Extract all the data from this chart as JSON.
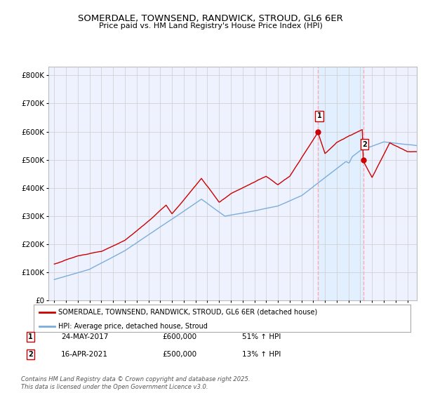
{
  "title": "SOMERDALE, TOWNSEND, RANDWICK, STROUD, GL6 6ER",
  "subtitle": "Price paid vs. HM Land Registry's House Price Index (HPI)",
  "legend_label_red": "SOMERDALE, TOWNSEND, RANDWICK, STROUD, GL6 6ER (detached house)",
  "legend_label_blue": "HPI: Average price, detached house, Stroud",
  "table_rows": [
    {
      "num": "1",
      "date": "24-MAY-2017",
      "price": "£600,000",
      "change": "51% ↑ HPI"
    },
    {
      "num": "2",
      "date": "16-APR-2021",
      "price": "£500,000",
      "change": "13% ↑ HPI"
    }
  ],
  "footnote": "Contains HM Land Registry data © Crown copyright and database right 2025.\nThis data is licensed under the Open Government Licence v3.0.",
  "marker1_x": 2017.38,
  "marker2_x": 2021.25,
  "marker1_y": 600000,
  "marker2_y": 500000,
  "red_color": "#cc0000",
  "blue_color": "#7aaddc",
  "vline_color": "#ffaaaa",
  "shade_color": "#ddeeff",
  "plot_bg": "#eef2ff",
  "grid_color": "#cccccc",
  "ylim": [
    0,
    830000
  ],
  "xlim_start": 1994.5,
  "xlim_end": 2025.8
}
